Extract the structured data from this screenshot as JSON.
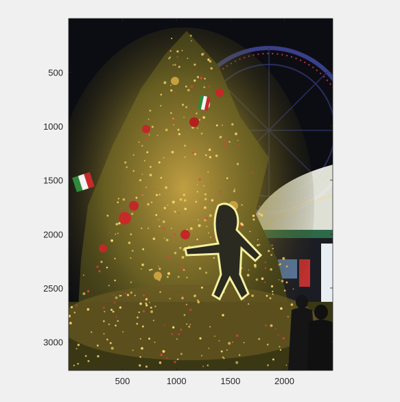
{
  "figure": {
    "background": "#f0f0f0",
    "axes_color": "#262626"
  },
  "chart_data": {
    "type": "image",
    "title": "",
    "xlabel": "",
    "ylabel": "",
    "xlim": [
      1,
      2448
    ],
    "ylim": [
      1,
      3264
    ],
    "y_direction": "reverse",
    "grid": false,
    "legend": "none",
    "xticks": [
      500,
      1000,
      1500,
      2000
    ],
    "yticks": [
      500,
      1000,
      1500,
      2000,
      2500,
      3000
    ],
    "xtick_labels": [
      "500",
      "1000",
      "1500",
      "2000"
    ],
    "ytick_labels": [
      "500",
      "1000",
      "1500",
      "2000",
      "2500",
      "3000"
    ],
    "image_content": {
      "scene": "illuminated Christmas tree at night with a Ferris wheel and a pavilion",
      "palette": {
        "sky": "#0c0d12",
        "foliage": "#5c5a22",
        "lights": "#ffd66a",
        "ferris_wheel": "#3a3f8a",
        "pavilion": "#f2f2e6"
      }
    }
  }
}
